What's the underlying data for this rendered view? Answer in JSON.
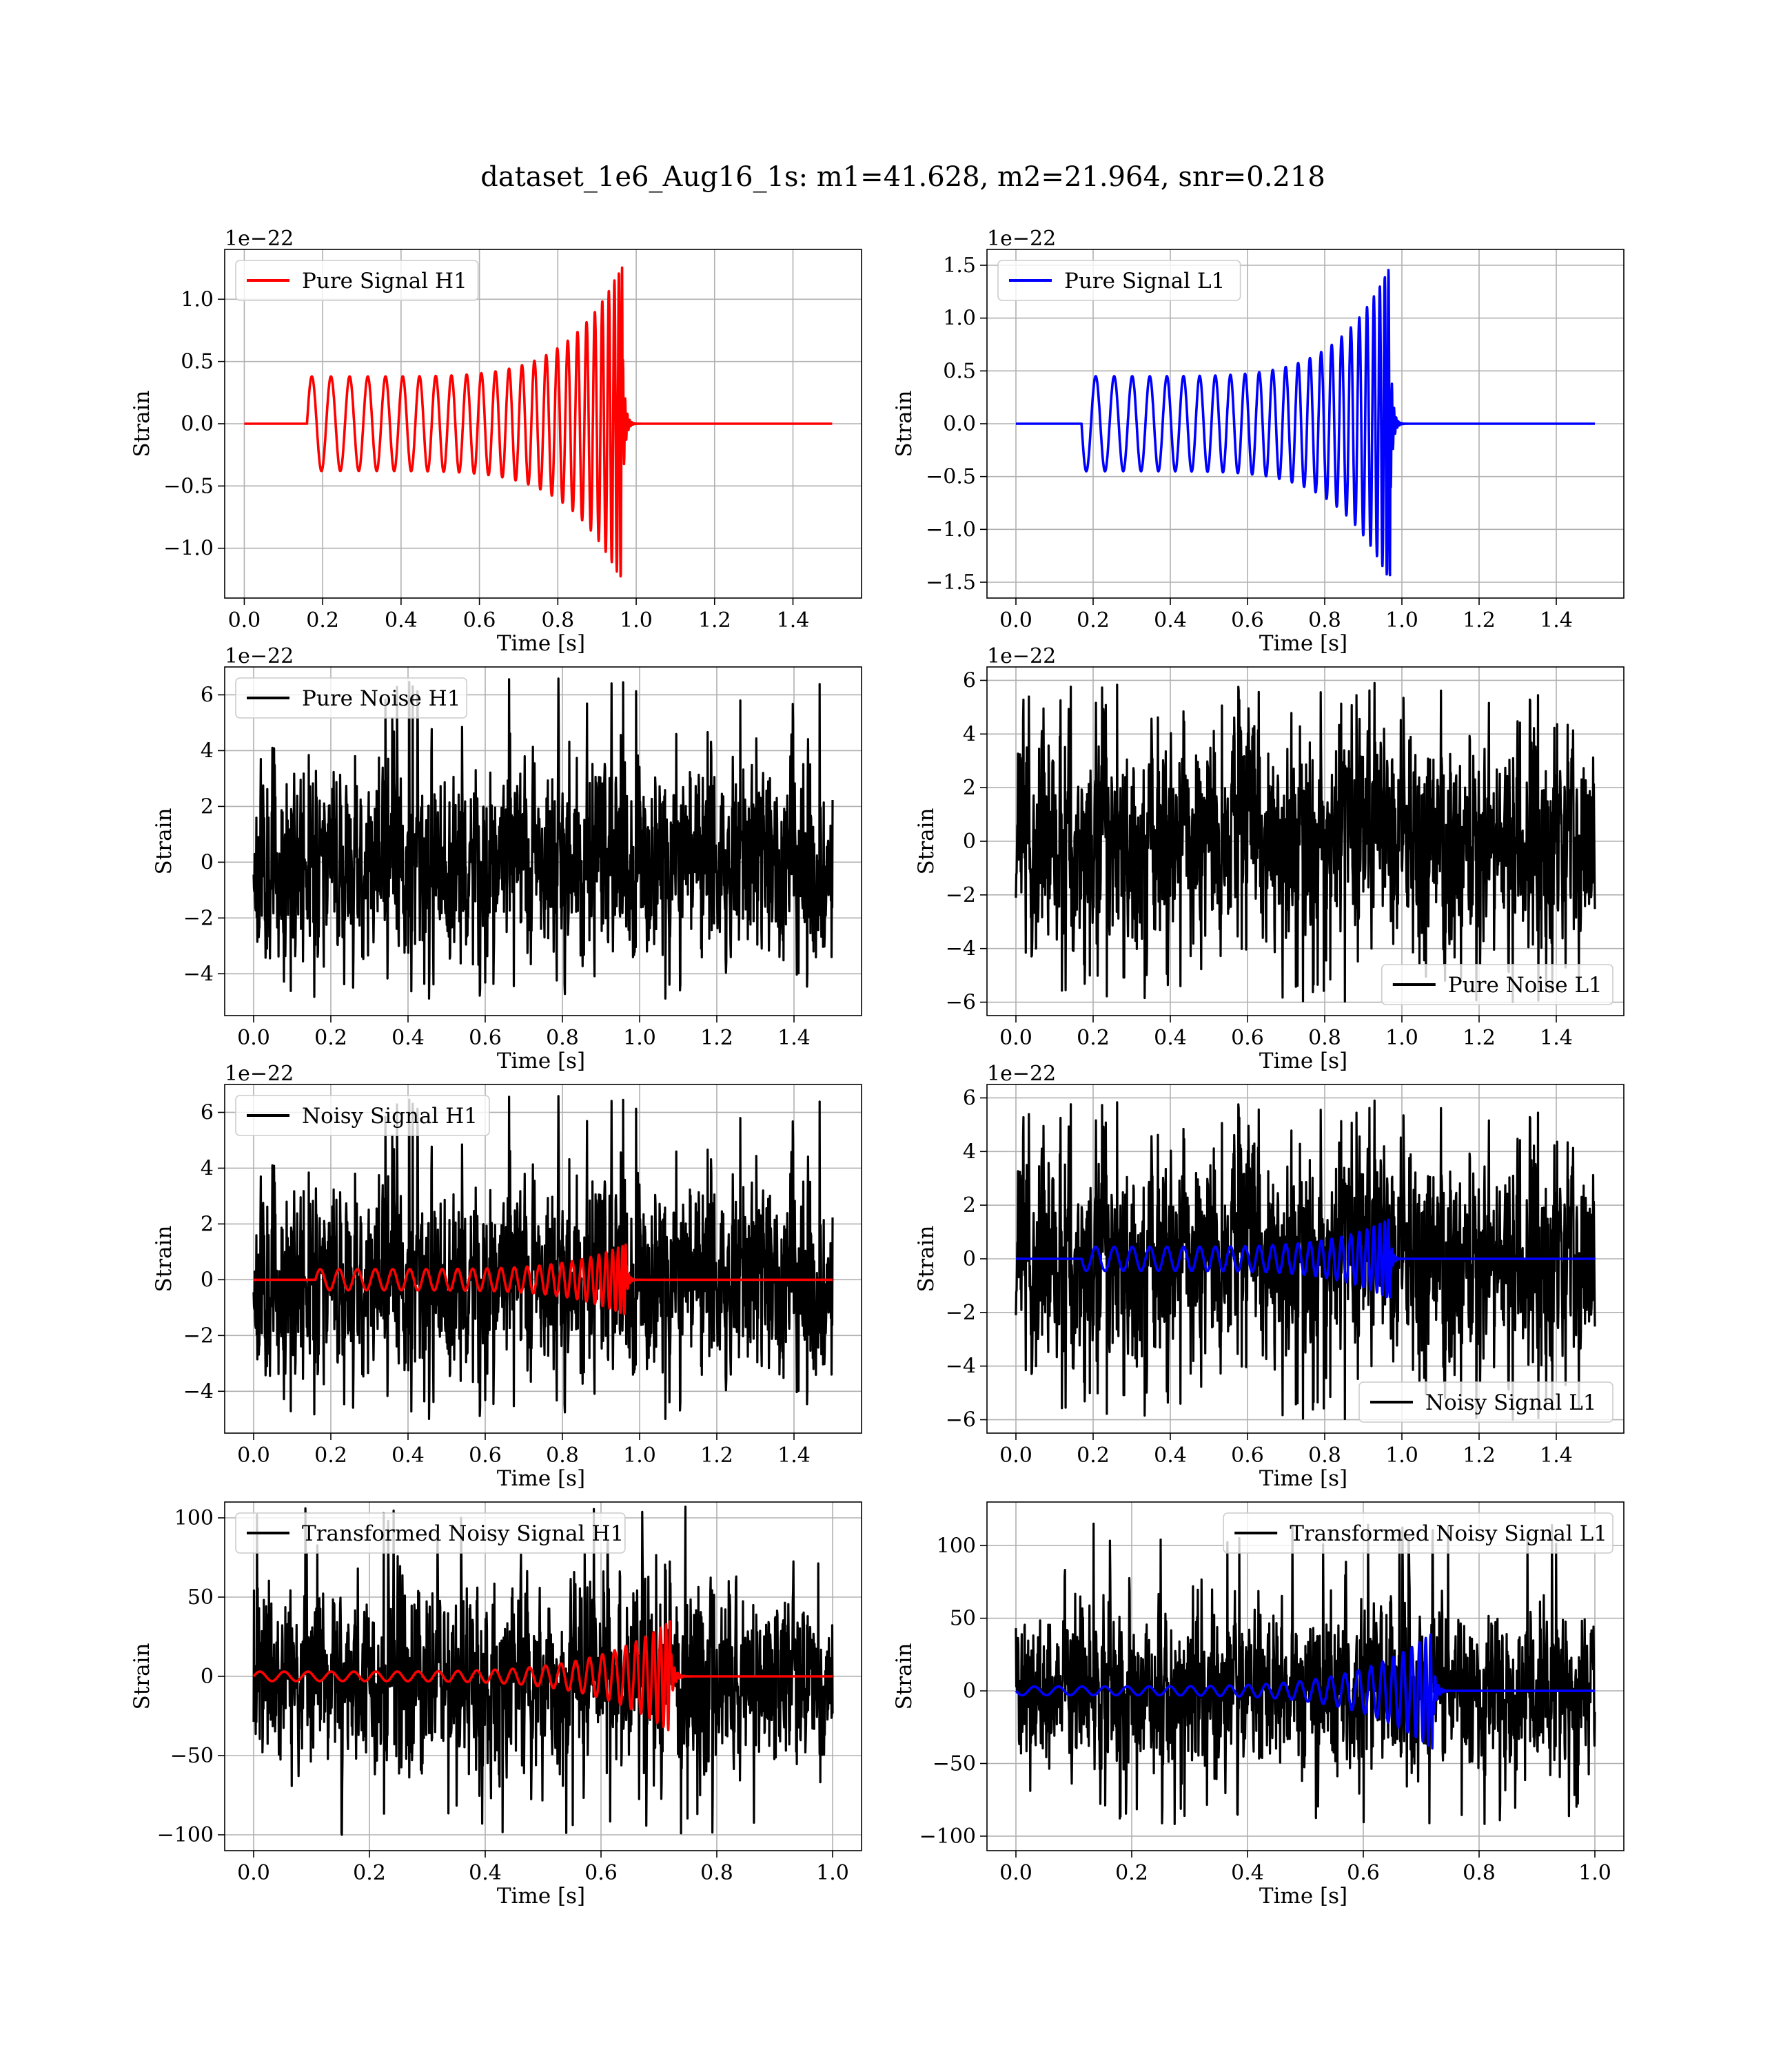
{
  "figure": {
    "title": "dataset_1e6_Aug16_1s: m1=41.628, m2=21.964, snr=0.218"
  },
  "colors": {
    "h1_signal": "#ff0000",
    "l1_signal": "#0000ff",
    "noise": "#000000",
    "grid": "#b0b0b0"
  },
  "chart_data": [
    {
      "id": "pure-signal-h1",
      "type": "line",
      "xlabel": "Time [s]",
      "ylabel": "Strain",
      "offset_text": "1e−22",
      "xlim": [
        -0.05,
        1.575
      ],
      "ylim": [
        -1.4,
        1.4
      ],
      "xticks": [
        0.0,
        0.2,
        0.4,
        0.6,
        0.8,
        1.0,
        1.2,
        1.4
      ],
      "xtick_labels": [
        "0.0",
        "0.2",
        "0.4",
        "0.6",
        "0.8",
        "1.0",
        "1.2",
        "1.4"
      ],
      "yticks": [
        -1.0,
        -0.5,
        0.0,
        0.5,
        1.0
      ],
      "ytick_labels": [
        "−1.0",
        "−0.5",
        "0.0",
        "0.5",
        "1.0"
      ],
      "legend": {
        "placement": "upper-left",
        "entries": [
          "Pure Signal H1"
        ]
      },
      "grid": true,
      "series": [
        {
          "name": "Pure Signal H1",
          "kind": "chirp",
          "color_key": "h1_signal",
          "t_start": 0.16,
          "t_merge": 0.965,
          "t_end": 1.5,
          "amp_start": 0.38,
          "amp_peak": 1.28,
          "cycles": 26,
          "polarity": 1
        }
      ]
    },
    {
      "id": "pure-signal-l1",
      "type": "line",
      "xlabel": "Time [s]",
      "ylabel": "Strain",
      "offset_text": "1e−22",
      "xlim": [
        -0.075,
        1.575
      ],
      "ylim": [
        -1.65,
        1.65
      ],
      "xticks": [
        0.0,
        0.2,
        0.4,
        0.6,
        0.8,
        1.0,
        1.2,
        1.4
      ],
      "xtick_labels": [
        "0.0",
        "0.2",
        "0.4",
        "0.6",
        "0.8",
        "1.0",
        "1.2",
        "1.4"
      ],
      "yticks": [
        -1.5,
        -1.0,
        -0.5,
        0.0,
        0.5,
        1.0,
        1.5
      ],
      "ytick_labels": [
        "−1.5",
        "−1.0",
        "−0.5",
        "0.0",
        "0.5",
        "1.0",
        "1.5"
      ],
      "legend": {
        "placement": "upper-left",
        "entries": [
          "Pure Signal L1"
        ]
      },
      "grid": true,
      "series": [
        {
          "name": "Pure Signal L1",
          "kind": "chirp",
          "color_key": "l1_signal",
          "t_start": 0.17,
          "t_merge": 0.97,
          "t_end": 1.5,
          "amp_start": 0.45,
          "amp_peak": 1.5,
          "cycles": 26,
          "polarity": -1
        }
      ]
    },
    {
      "id": "pure-noise-h1",
      "type": "line",
      "xlabel": "Time [s]",
      "ylabel": "Strain",
      "offset_text": "1e−22",
      "xlim": [
        -0.075,
        1.575
      ],
      "ylim": [
        -5.5,
        7.0
      ],
      "xticks": [
        0.0,
        0.2,
        0.4,
        0.6,
        0.8,
        1.0,
        1.2,
        1.4
      ],
      "xtick_labels": [
        "0.0",
        "0.2",
        "0.4",
        "0.6",
        "0.8",
        "1.0",
        "1.2",
        "1.4"
      ],
      "yticks": [
        -4,
        -2,
        0,
        2,
        4,
        6
      ],
      "ytick_labels": [
        "−4",
        "−2",
        "0",
        "2",
        "4",
        "6"
      ],
      "legend": {
        "placement": "upper-left",
        "entries": [
          "Pure Noise H1"
        ]
      },
      "grid": true,
      "series": [
        {
          "name": "Pure Noise H1",
          "kind": "noise",
          "color_key": "noise",
          "t_start": 0.0,
          "t_end": 1.5,
          "sigma": 1.6,
          "min": -4.9,
          "max": 6.6,
          "seed": 11
        }
      ]
    },
    {
      "id": "pure-noise-l1",
      "type": "line",
      "xlabel": "Time [s]",
      "ylabel": "Strain",
      "offset_text": "1e−22",
      "xlim": [
        -0.075,
        1.575
      ],
      "ylim": [
        -6.5,
        6.5
      ],
      "xticks": [
        0.0,
        0.2,
        0.4,
        0.6,
        0.8,
        1.0,
        1.2,
        1.4
      ],
      "xtick_labels": [
        "0.0",
        "0.2",
        "0.4",
        "0.6",
        "0.8",
        "1.0",
        "1.2",
        "1.4"
      ],
      "yticks": [
        -6,
        -4,
        -2,
        0,
        2,
        4,
        6
      ],
      "ytick_labels": [
        "−6",
        "−4",
        "−2",
        "0",
        "2",
        "4",
        "6"
      ],
      "legend": {
        "placement": "lower-right",
        "entries": [
          "Pure Noise L1"
        ]
      },
      "grid": true,
      "series": [
        {
          "name": "Pure Noise L1",
          "kind": "noise",
          "color_key": "noise",
          "t_start": 0.0,
          "t_end": 1.5,
          "sigma": 1.9,
          "min": -6.0,
          "max": 5.9,
          "seed": 23
        }
      ]
    },
    {
      "id": "noisy-signal-h1",
      "type": "line",
      "xlabel": "Time [s]",
      "ylabel": "Strain",
      "offset_text": "1e−22",
      "xlim": [
        -0.075,
        1.575
      ],
      "ylim": [
        -5.5,
        7.0
      ],
      "xticks": [
        0.0,
        0.2,
        0.4,
        0.6,
        0.8,
        1.0,
        1.2,
        1.4
      ],
      "xtick_labels": [
        "0.0",
        "0.2",
        "0.4",
        "0.6",
        "0.8",
        "1.0",
        "1.2",
        "1.4"
      ],
      "yticks": [
        -4,
        -2,
        0,
        2,
        4,
        6
      ],
      "ytick_labels": [
        "−4",
        "−2",
        "0",
        "2",
        "4",
        "6"
      ],
      "legend": {
        "placement": "upper-left",
        "entries": [
          "Noisy Signal H1"
        ]
      },
      "grid": true,
      "series": [
        {
          "name": "Noisy Signal H1",
          "kind": "noise",
          "color_key": "noise",
          "t_start": 0.0,
          "t_end": 1.5,
          "sigma": 1.6,
          "min": -5.0,
          "max": 6.6,
          "seed": 11
        },
        {
          "kind": "chirp",
          "color_key": "h1_signal",
          "t_start": 0.16,
          "t_merge": 0.965,
          "t_end": 1.5,
          "amp_start": 0.38,
          "amp_peak": 1.28,
          "cycles": 26,
          "polarity": 1
        }
      ]
    },
    {
      "id": "noisy-signal-l1",
      "type": "line",
      "xlabel": "Time [s]",
      "ylabel": "Strain",
      "offset_text": "1e−22",
      "xlim": [
        -0.075,
        1.575
      ],
      "ylim": [
        -6.5,
        6.5
      ],
      "xticks": [
        0.0,
        0.2,
        0.4,
        0.6,
        0.8,
        1.0,
        1.2,
        1.4
      ],
      "xtick_labels": [
        "0.0",
        "0.2",
        "0.4",
        "0.6",
        "0.8",
        "1.0",
        "1.2",
        "1.4"
      ],
      "yticks": [
        -6,
        -4,
        -2,
        0,
        2,
        4,
        6
      ],
      "ytick_labels": [
        "−6",
        "−4",
        "−2",
        "0",
        "2",
        "4",
        "6"
      ],
      "legend": {
        "placement": "lower-right",
        "entries": [
          "Noisy Signal L1"
        ]
      },
      "grid": true,
      "series": [
        {
          "name": "Noisy Signal L1",
          "kind": "noise",
          "color_key": "noise",
          "t_start": 0.0,
          "t_end": 1.5,
          "sigma": 1.9,
          "min": -6.0,
          "max": 5.9,
          "seed": 23
        },
        {
          "kind": "chirp",
          "color_key": "l1_signal",
          "t_start": 0.17,
          "t_merge": 0.97,
          "t_end": 1.5,
          "amp_start": 0.45,
          "amp_peak": 1.5,
          "cycles": 26,
          "polarity": -1
        }
      ]
    },
    {
      "id": "transformed-noisy-signal-h1",
      "type": "line",
      "xlabel": "Time [s]",
      "ylabel": "Strain",
      "offset_text": "",
      "xlim": [
        -0.05,
        1.05
      ],
      "ylim": [
        -110,
        110
      ],
      "xticks": [
        0.0,
        0.2,
        0.4,
        0.6,
        0.8,
        1.0
      ],
      "xtick_labels": [
        "0.0",
        "0.2",
        "0.4",
        "0.6",
        "0.8",
        "1.0"
      ],
      "yticks": [
        -100,
        -50,
        0,
        50,
        100
      ],
      "ytick_labels": [
        "−100",
        "−50",
        "0",
        "50",
        "100"
      ],
      "legend": {
        "placement": "upper-left",
        "entries": [
          "Transformed Noisy Signal H1"
        ]
      },
      "grid": true,
      "series": [
        {
          "name": "Transformed Noisy Signal H1",
          "kind": "noise",
          "color_key": "noise",
          "t_start": 0.0,
          "t_end": 1.0,
          "sigma": 26,
          "min": -100,
          "max": 107,
          "seed": 37
        },
        {
          "kind": "chirp",
          "color_key": "h1_signal",
          "t_start": 0.0,
          "t_merge": 0.72,
          "t_end": 1.0,
          "amp_start": 3,
          "amp_peak": 35,
          "cycles": 27,
          "polarity": 1
        }
      ]
    },
    {
      "id": "transformed-noisy-signal-l1",
      "type": "line",
      "xlabel": "Time [s]",
      "ylabel": "Strain",
      "offset_text": "",
      "xlim": [
        -0.05,
        1.05
      ],
      "ylim": [
        -110,
        130
      ],
      "xticks": [
        0.0,
        0.2,
        0.4,
        0.6,
        0.8,
        1.0
      ],
      "xtick_labels": [
        "0.0",
        "0.2",
        "0.4",
        "0.6",
        "0.8",
        "1.0"
      ],
      "yticks": [
        -100,
        -50,
        0,
        50,
        100
      ],
      "ytick_labels": [
        "−100",
        "−50",
        "0",
        "50",
        "100"
      ],
      "legend": {
        "placement": "upper-right",
        "entries": [
          "Transformed Noisy Signal L1"
        ]
      },
      "grid": true,
      "series": [
        {
          "name": "Transformed Noisy Signal L1",
          "kind": "noise",
          "color_key": "noise",
          "t_start": 0.0,
          "t_end": 1.0,
          "sigma": 26,
          "min": -92,
          "max": 117,
          "seed": 41
        },
        {
          "kind": "chirp",
          "color_key": "l1_signal",
          "t_start": 0.0,
          "t_merge": 0.72,
          "t_end": 1.0,
          "amp_start": 3,
          "amp_peak": 40,
          "cycles": 27,
          "polarity": -1
        }
      ]
    }
  ]
}
